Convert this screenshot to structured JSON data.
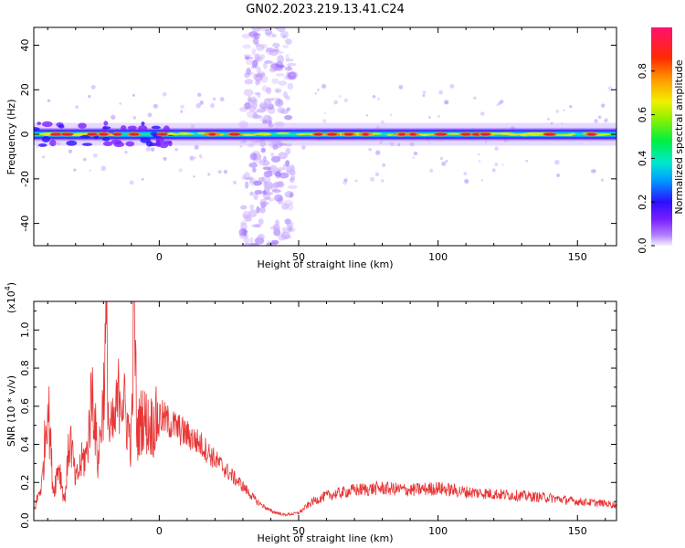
{
  "title": "GN02.2023.219.13.41.C24",
  "chart_data": [
    {
      "type": "heatmap",
      "xlabel": "Height of straight line (km)",
      "ylabel": "Frequency (Hz)",
      "xlim": [
        -45,
        164
      ],
      "ylim": [
        -50,
        48
      ],
      "xticks": [
        0,
        50,
        100,
        150
      ],
      "yticks": [
        -40,
        -20,
        0,
        20,
        40
      ],
      "colorbar": {
        "label": "Normalized spectral amplitude",
        "range": [
          0,
          1
        ],
        "ticks": [
          0.0,
          0.2,
          0.4,
          0.6,
          0.8
        ]
      },
      "features": {
        "band_center_hz": 0,
        "band_half_width_hz": 3,
        "vertical_stripe_km": [
          30,
          48
        ],
        "peaks_km": [
          -37,
          -33,
          -24,
          -20,
          -15,
          -9,
          1,
          19,
          27,
          57,
          62,
          68,
          74,
          87,
          91,
          101,
          110,
          114,
          117,
          140,
          155
        ]
      }
    },
    {
      "type": "line",
      "xlabel": "Height of straight line (km)",
      "ylabel": "SNR (10 * v/v)",
      "yscale_label": "(x10",
      "yscale_exp": "4",
      "yscale_close": ")",
      "xlim": [
        -45,
        164
      ],
      "ylim": [
        0,
        1.15
      ],
      "xticks": [
        0,
        50,
        100,
        150
      ],
      "yticks": [
        0.0,
        0.2,
        0.4,
        0.6,
        0.8,
        1.0
      ],
      "color": "#e83535",
      "series": [
        {
          "x": [
            -45,
            -42,
            -40,
            -38,
            -36,
            -34,
            -32,
            -30,
            -28,
            -26,
            -24,
            -22,
            -20,
            -19,
            -18,
            -16,
            -14,
            -12,
            -10,
            -9,
            -8,
            -6,
            -4,
            -2,
            0,
            5,
            10,
            15,
            20,
            25,
            30,
            35,
            40,
            45,
            50,
            55,
            60,
            70,
            80,
            90,
            100,
            110,
            120,
            130,
            140,
            150,
            160,
            164
          ],
          "y": [
            0.05,
            0.2,
            0.65,
            0.15,
            0.3,
            0.1,
            0.45,
            0.2,
            0.3,
            0.35,
            0.7,
            0.3,
            0.65,
            1.02,
            0.45,
            0.5,
            0.72,
            0.55,
            0.4,
            1.15,
            0.45,
            0.55,
            0.5,
            0.5,
            0.55,
            0.5,
            0.45,
            0.4,
            0.32,
            0.25,
            0.18,
            0.1,
            0.05,
            0.03,
            0.04,
            0.1,
            0.13,
            0.16,
            0.17,
            0.16,
            0.17,
            0.15,
            0.14,
            0.13,
            0.12,
            0.1,
            0.09,
            0.08
          ]
        }
      ]
    }
  ]
}
